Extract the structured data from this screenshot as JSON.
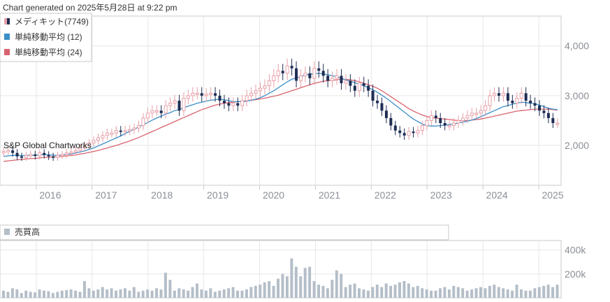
{
  "header": {
    "generated": "Chart generated on 2025年5月28日 at 9:22 pm"
  },
  "watermark": "S&P Global Chartworks",
  "colors": {
    "up": "#e8a0a8",
    "down": "#1f2d54",
    "sma12": "#3b8fc8",
    "sma24": "#d9636f",
    "volume": "#b4bec8",
    "grid": "#e6e6e6",
    "axis": "#c8c8c8"
  },
  "chart_data": [
    {
      "type": "candlestick",
      "legend": [
        {
          "name": "メディキット(7749)",
          "icon": "candle-swatch-icon"
        },
        {
          "name": "単純移動平均 (12)",
          "icon": "blue-swatch-icon",
          "color": "#3b8fc8"
        },
        {
          "name": "単純移動平均 (24)",
          "icon": "red-swatch-icon",
          "color": "#d9636f"
        }
      ],
      "x_ticks": [
        "2016",
        "2017",
        "2018",
        "2019",
        "2020",
        "2021",
        "2022",
        "2023",
        "2024",
        "2025"
      ],
      "y_ticks": [
        "2,000",
        "3,000",
        "4,000"
      ],
      "y_tick_values": [
        2000,
        3000,
        4000
      ],
      "ylim": [
        1200,
        4600
      ],
      "start_year": 2015.35,
      "end_year": 2025.4,
      "monthly_close": [
        1880,
        1900,
        1850,
        1780,
        1760,
        1800,
        1820,
        1790,
        1850,
        1810,
        1780,
        1760,
        1800,
        1820,
        1850,
        1870,
        1900,
        1950,
        2000,
        2050,
        2100,
        2150,
        2200,
        2250,
        2250,
        2300,
        2280,
        2300,
        2320,
        2350,
        2400,
        2550,
        2650,
        2700,
        2700,
        2650,
        2800,
        2850,
        2900,
        2700,
        2950,
        3000,
        3050,
        3050,
        3000,
        3030,
        3050,
        3000,
        2900,
        2850,
        2800,
        2850,
        2800,
        2900,
        3000,
        3050,
        3100,
        3150,
        3200,
        3300,
        3400,
        3500,
        3450,
        3600,
        3550,
        3300,
        3400,
        3450,
        3350,
        3550,
        3500,
        3400,
        3300,
        3350,
        3400,
        3250,
        3300,
        3200,
        3100,
        3250,
        3200,
        3100,
        2900,
        2850,
        2700,
        2550,
        2400,
        2300,
        2250,
        2200,
        2280,
        2250,
        2300,
        2400,
        2500,
        2600,
        2550,
        2450,
        2400,
        2400,
        2450,
        2500,
        2550,
        2600,
        2650,
        2650,
        2700,
        2800,
        3000,
        3050,
        3000,
        3050,
        2900,
        2850,
        2950,
        3050,
        2900,
        2850,
        2800,
        2700,
        2650,
        2550,
        2450,
        2450
      ],
      "sma12": [
        1780,
        1790,
        1800,
        1800,
        1795,
        1800,
        1805,
        1800,
        1810,
        1815,
        1810,
        1805,
        1800,
        1810,
        1820,
        1830,
        1850,
        1870,
        1890,
        1920,
        1950,
        1990,
        2030,
        2070,
        2110,
        2150,
        2190,
        2240,
        2280,
        2330,
        2370,
        2420,
        2460,
        2510,
        2550,
        2590,
        2630,
        2660,
        2700,
        2720,
        2760,
        2790,
        2820,
        2850,
        2870,
        2890,
        2910,
        2920,
        2930,
        2920,
        2900,
        2880,
        2880,
        2880,
        2890,
        2910,
        2930,
        2960,
        3000,
        3050,
        3100,
        3160,
        3220,
        3280,
        3330,
        3360,
        3380,
        3420,
        3430,
        3440,
        3450,
        3440,
        3420,
        3400,
        3380,
        3350,
        3320,
        3290,
        3260,
        3230,
        3200,
        3160,
        3120,
        3070,
        3010,
        2950,
        2880,
        2810,
        2740,
        2670,
        2600,
        2530,
        2480,
        2430,
        2400,
        2390,
        2390,
        2400,
        2410,
        2420,
        2430,
        2450,
        2470,
        2490,
        2510,
        2540,
        2580,
        2620,
        2660,
        2700,
        2740,
        2780,
        2800,
        2830,
        2850,
        2870,
        2860,
        2850,
        2840,
        2810,
        2780,
        2750,
        2730,
        2720
      ],
      "sma24": [
        1680,
        1690,
        1700,
        1710,
        1720,
        1730,
        1735,
        1740,
        1750,
        1760,
        1765,
        1770,
        1775,
        1780,
        1790,
        1800,
        1810,
        1825,
        1840,
        1860,
        1880,
        1900,
        1925,
        1950,
        1975,
        2000,
        2030,
        2060,
        2090,
        2125,
        2160,
        2200,
        2240,
        2280,
        2320,
        2360,
        2400,
        2440,
        2480,
        2520,
        2560,
        2600,
        2640,
        2680,
        2720,
        2750,
        2780,
        2810,
        2830,
        2850,
        2860,
        2870,
        2880,
        2890,
        2900,
        2910,
        2920,
        2935,
        2950,
        2970,
        2990,
        3010,
        3040,
        3070,
        3100,
        3130,
        3160,
        3190,
        3220,
        3250,
        3270,
        3290,
        3300,
        3310,
        3320,
        3330,
        3330,
        3320,
        3300,
        3280,
        3250,
        3220,
        3190,
        3150,
        3100,
        3040,
        2980,
        2920,
        2860,
        2800,
        2740,
        2690,
        2650,
        2610,
        2580,
        2560,
        2550,
        2540,
        2530,
        2520,
        2510,
        2500,
        2500,
        2500,
        2510,
        2520,
        2530,
        2550,
        2570,
        2590,
        2610,
        2630,
        2650,
        2670,
        2690,
        2700,
        2710,
        2720,
        2730,
        2730,
        2730,
        2730,
        2720,
        2710
      ]
    },
    {
      "type": "bar",
      "legend": [
        {
          "name": "売買高",
          "icon": "volume-swatch-icon"
        }
      ],
      "y_ticks": [
        "200k",
        "400k"
      ],
      "y_tick_values": [
        200000,
        400000
      ],
      "ylim": [
        0,
        480000
      ],
      "values": [
        60000,
        50000,
        80000,
        70000,
        40000,
        60000,
        50000,
        45000,
        70000,
        60000,
        55000,
        40000,
        50000,
        60000,
        65000,
        70000,
        60000,
        50000,
        140000,
        80000,
        60000,
        70000,
        90000,
        70000,
        80000,
        60000,
        70000,
        80000,
        60000,
        90000,
        50000,
        60000,
        70000,
        60000,
        80000,
        70000,
        210000,
        150000,
        60000,
        80000,
        70000,
        60000,
        90000,
        120000,
        70000,
        60000,
        80000,
        50000,
        60000,
        70000,
        80000,
        90000,
        60000,
        60000,
        70000,
        90000,
        100000,
        110000,
        130000,
        140000,
        100000,
        160000,
        200000,
        180000,
        330000,
        260000,
        180000,
        250000,
        260000,
        140000,
        110000,
        100000,
        80000,
        150000,
        230000,
        200000,
        90000,
        110000,
        120000,
        80000,
        70000,
        60000,
        90000,
        110000,
        90000,
        120000,
        100000,
        110000,
        130000,
        140000,
        120000,
        90000,
        100000,
        80000,
        70000,
        60000,
        60000,
        80000,
        90000,
        70000,
        100000,
        90000,
        80000,
        60000,
        70000,
        80000,
        90000,
        80000,
        100000,
        110000,
        90000,
        80000,
        70000,
        60000,
        110000,
        70000,
        60000,
        60000,
        80000,
        90000,
        100000,
        110000,
        90000,
        110000
      ]
    }
  ]
}
